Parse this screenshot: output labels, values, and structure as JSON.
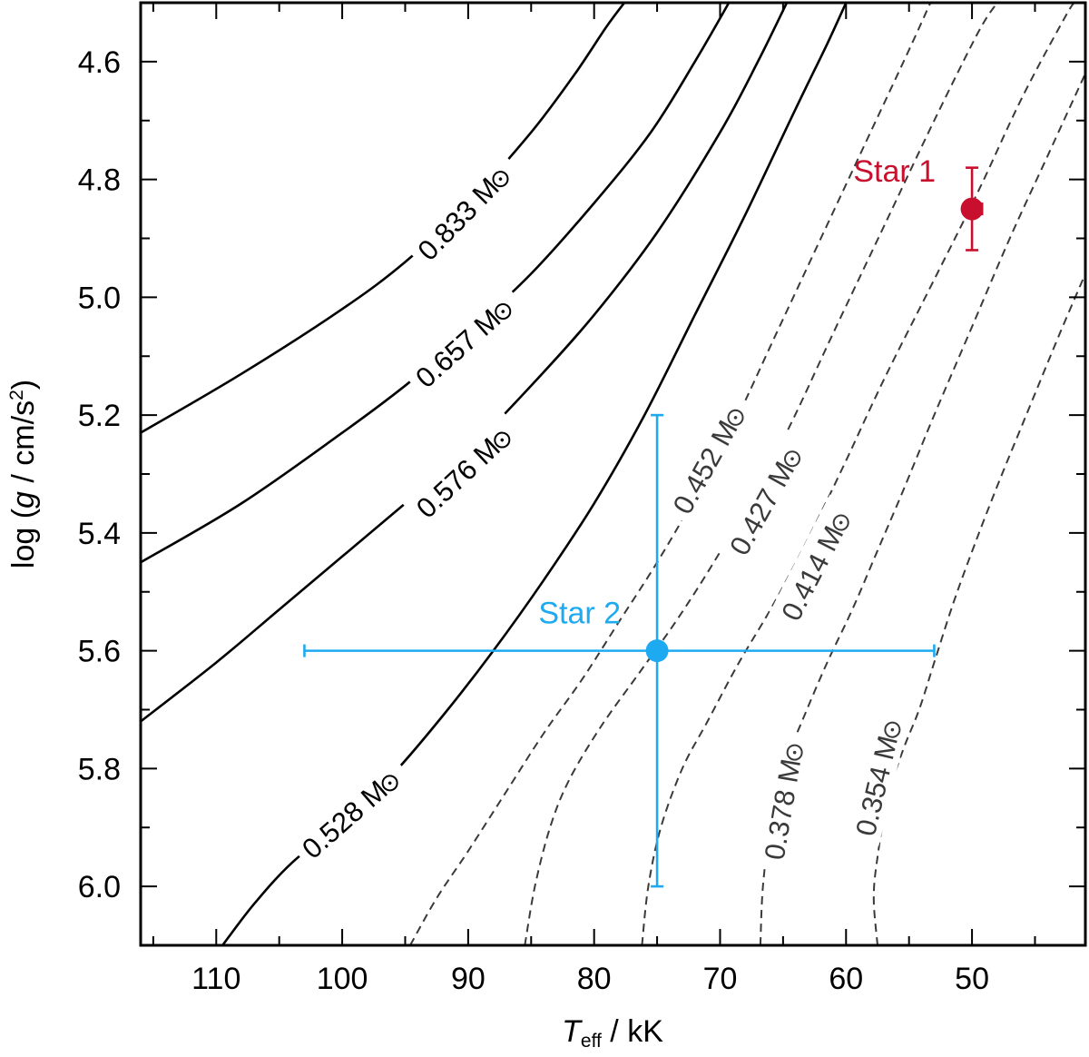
{
  "chart_data": {
    "type": "line",
    "title": "",
    "xlabel": {
      "main": "T",
      "sub": "eff",
      "rest": " / kK"
    },
    "ylabel": {
      "pre": "log (",
      "g": "g",
      "mid": " / cm/s",
      "sup": "2",
      "post": ")"
    },
    "xlim": [
      116,
      41
    ],
    "ylim": [
      4.5,
      6.1
    ],
    "x_ticks": [
      110,
      100,
      90,
      80,
      70,
      60,
      50
    ],
    "x_tick_labels": [
      "110",
      "100",
      "90",
      "80",
      "70",
      "60",
      "50"
    ],
    "y_ticks": [
      4.6,
      4.8,
      5.0,
      5.2,
      5.4,
      5.6,
      5.8,
      6.0
    ],
    "y_tick_labels": [
      "4.6",
      "4.8",
      "5.0",
      "5.2",
      "5.4",
      "5.6",
      "5.8",
      "6.0"
    ],
    "y_inverted": true,
    "grid": false,
    "mass_symbol": "M",
    "tracks": [
      {
        "label": "0.833",
        "style": "solid",
        "color": "#000000",
        "points": [
          [
            116,
            5.23
          ],
          [
            108,
            5.13
          ],
          [
            100,
            5.02
          ],
          [
            95,
            4.94
          ],
          [
            90,
            4.84
          ],
          [
            85,
            4.72
          ],
          [
            81.5,
            4.62
          ],
          [
            79,
            4.54
          ],
          [
            77.6,
            4.5
          ]
        ],
        "label_at": [
          90.5,
          4.86
        ]
      },
      {
        "label": "0.657",
        "style": "solid",
        "color": "#000000",
        "points": [
          [
            116,
            5.45
          ],
          [
            108,
            5.35
          ],
          [
            100,
            5.23
          ],
          [
            95,
            5.15
          ],
          [
            90,
            5.06
          ],
          [
            85,
            4.96
          ],
          [
            80,
            4.84
          ],
          [
            75.5,
            4.72
          ],
          [
            72,
            4.6
          ],
          [
            69.3,
            4.5
          ]
        ],
        "label_at": [
          90.5,
          5.08
        ]
      },
      {
        "label": "0.576",
        "style": "solid",
        "color": "#000000",
        "points": [
          [
            116,
            5.72
          ],
          [
            110,
            5.62
          ],
          [
            105,
            5.53
          ],
          [
            100,
            5.44
          ],
          [
            95,
            5.35
          ],
          [
            90,
            5.26
          ],
          [
            85,
            5.15
          ],
          [
            80,
            5.03
          ],
          [
            75,
            4.89
          ],
          [
            70,
            4.72
          ],
          [
            67,
            4.6
          ],
          [
            64.7,
            4.5
          ]
        ],
        "label_at": [
          90.5,
          5.3
        ]
      },
      {
        "label": "0.528",
        "style": "solid",
        "color": "#000000",
        "points": [
          [
            109.5,
            6.1
          ],
          [
            107,
            6.03
          ],
          [
            104,
            5.96
          ],
          [
            100,
            5.89
          ],
          [
            96,
            5.81
          ],
          [
            92,
            5.71
          ],
          [
            88,
            5.6
          ],
          [
            84,
            5.48
          ],
          [
            80,
            5.35
          ],
          [
            76,
            5.2
          ],
          [
            72,
            5.03
          ],
          [
            68,
            4.86
          ],
          [
            64,
            4.68
          ],
          [
            61.5,
            4.57
          ],
          [
            60,
            4.5
          ]
        ],
        "label_at": [
          99.5,
          5.88
        ]
      },
      {
        "label": "0.452",
        "style": "dashed",
        "color": "#3a3a3a",
        "points": [
          [
            94.6,
            6.1
          ],
          [
            92.5,
            6.02
          ],
          [
            90,
            5.94
          ],
          [
            87,
            5.84
          ],
          [
            84,
            5.74
          ],
          [
            81,
            5.65
          ],
          [
            78,
            5.55
          ],
          [
            75,
            5.45
          ],
          [
            72,
            5.34
          ],
          [
            69,
            5.22
          ],
          [
            65.5,
            5.06
          ],
          [
            62,
            4.9
          ],
          [
            58.5,
            4.74
          ],
          [
            55,
            4.58
          ],
          [
            53.3,
            4.5
          ]
        ],
        "label_at": [
          71,
          5.28
        ]
      },
      {
        "label": "0.427",
        "style": "dashed",
        "color": "#3a3a3a",
        "points": [
          [
            85.5,
            6.1
          ],
          [
            84.7,
            6.0
          ],
          [
            83.5,
            5.9
          ],
          [
            82,
            5.82
          ],
          [
            79.5,
            5.73
          ],
          [
            76.5,
            5.64
          ],
          [
            73.5,
            5.55
          ],
          [
            70.5,
            5.45
          ],
          [
            67.5,
            5.34
          ],
          [
            64.5,
            5.22
          ],
          [
            61,
            5.06
          ],
          [
            57,
            4.88
          ],
          [
            53,
            4.7
          ],
          [
            49.5,
            4.55
          ],
          [
            48,
            4.5
          ]
        ],
        "label_at": [
          66.5,
          5.35
        ]
      },
      {
        "label": "0.414",
        "style": "dashed",
        "color": "#3a3a3a",
        "points": [
          [
            76.2,
            6.1
          ],
          [
            75.7,
            6.0
          ],
          [
            74.7,
            5.9
          ],
          [
            73,
            5.8
          ],
          [
            71,
            5.72
          ],
          [
            68.5,
            5.62
          ],
          [
            66,
            5.53
          ],
          [
            63.5,
            5.43
          ],
          [
            60.5,
            5.3
          ],
          [
            57,
            5.14
          ],
          [
            53,
            4.97
          ],
          [
            49.5,
            4.82
          ],
          [
            46,
            4.66
          ],
          [
            42.5,
            4.52
          ],
          [
            41.8,
            4.5
          ]
        ],
        "label_at": [
          62.5,
          5.46
        ]
      },
      {
        "label": "0.378",
        "style": "dashed",
        "color": "#3a3a3a",
        "points": [
          [
            66.8,
            6.1
          ],
          [
            66.6,
            6.0
          ],
          [
            66,
            5.9
          ],
          [
            65,
            5.8
          ],
          [
            63.5,
            5.72
          ],
          [
            61.5,
            5.62
          ],
          [
            59.5,
            5.53
          ],
          [
            57.5,
            5.43
          ],
          [
            55.5,
            5.33
          ],
          [
            53,
            5.2
          ],
          [
            50,
            5.05
          ],
          [
            47,
            4.9
          ],
          [
            44,
            4.76
          ],
          [
            41,
            4.62
          ]
        ],
        "label_at": [
          65,
          5.86
        ]
      },
      {
        "label": "0.354",
        "style": "dashed",
        "color": "#3a3a3a",
        "points": [
          [
            57.5,
            6.1
          ],
          [
            57.8,
            6.02
          ],
          [
            57.5,
            5.95
          ],
          [
            56.7,
            5.85
          ],
          [
            55.5,
            5.77
          ],
          [
            54.2,
            5.7
          ],
          [
            53,
            5.62
          ],
          [
            51.5,
            5.52
          ],
          [
            49.8,
            5.42
          ],
          [
            47.8,
            5.31
          ],
          [
            45.5,
            5.19
          ],
          [
            43,
            5.06
          ],
          [
            41,
            4.96
          ]
        ],
        "label_at": [
          57.5,
          5.82
        ]
      }
    ],
    "stars": [
      {
        "name": "Star 1",
        "color": "#c8102e",
        "teff": 50,
        "logg": 4.85,
        "teff_err_plus": 0.5,
        "teff_err_minus": 0.8,
        "logg_err": 0.07,
        "label_position": "upper-left"
      },
      {
        "name": "Star 2",
        "color": "#1eaaf1",
        "teff": 75,
        "logg": 5.6,
        "teff_err_plus": 28,
        "teff_err_minus": 22,
        "logg_err": 0.4,
        "label_position": "upper-left"
      }
    ]
  }
}
